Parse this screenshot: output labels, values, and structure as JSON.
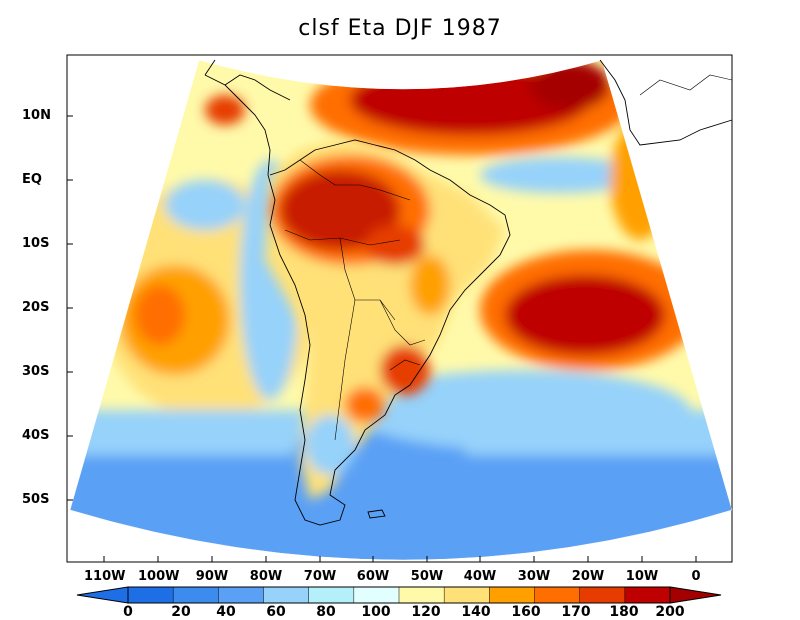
{
  "figure": {
    "title": "clsf Eta DJF 1987",
    "variable": "clsf",
    "model": "Eta",
    "season": "DJF",
    "year": "1987"
  },
  "axes": {
    "lat_labels": [
      "10N",
      "EQ",
      "10S",
      "20S",
      "30S",
      "40S",
      "50S"
    ],
    "lon_labels": [
      "110W",
      "100W",
      "90W",
      "80W",
      "70W",
      "60W",
      "50W",
      "40W",
      "30W",
      "20W",
      "10W",
      "0"
    ],
    "lat_range": [
      -60,
      20
    ],
    "lon_range": [
      -120,
      5
    ]
  },
  "colorbar": {
    "levels": [
      "0",
      "20",
      "40",
      "60",
      "80",
      "100",
      "120",
      "140",
      "160",
      "170",
      "180",
      "200"
    ],
    "colors": [
      "#1e6ee6",
      "#3c8cf0",
      "#5aa0f5",
      "#96d2fa",
      "#b4f0fa",
      "#e1ffff",
      "#fffaaa",
      "#ffe178",
      "#ffa000",
      "#ff6e00",
      "#e63c00",
      "#be0000"
    ],
    "under_color": "#1e6ee6",
    "over_color": "#a50000"
  },
  "regions": [
    {
      "name": "tropical-north-atlantic",
      "level": "180-200",
      "color": "#be0000"
    },
    {
      "name": "south-atlantic-high",
      "level": "180-200",
      "color": "#be0000"
    },
    {
      "name": "amazon",
      "level": "170-200",
      "color": "#c81e00"
    },
    {
      "name": "southern-brazil",
      "level": "170-180",
      "color": "#e63c00"
    },
    {
      "name": "southeast-pacific",
      "level": "160-170",
      "color": "#ff6e00"
    },
    {
      "name": "southern-ocean",
      "level": "20-60",
      "color": "#5aa0f5"
    },
    {
      "name": "southwest-atlantic",
      "level": "20-60",
      "color": "#5aa0f5"
    },
    {
      "name": "andes-coast",
      "level": "40-80",
      "color": "#96d2fa"
    }
  ]
}
